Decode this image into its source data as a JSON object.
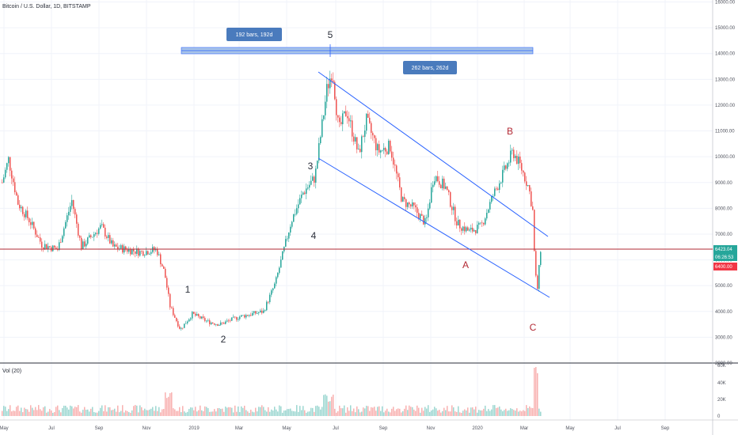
{
  "symbol": "Bitcoin / U.S. Dollar, 1D, BITSTAMP",
  "price_axis": {
    "ticks": [
      "16000.00",
      "15000.00",
      "14000.00",
      "13000.00",
      "12000.00",
      "11000.00",
      "10000.00",
      "9000.00",
      "8000.00",
      "7000.00",
      "6000.00",
      "5000.00",
      "4000.00",
      "3000.00",
      "2000.00"
    ],
    "ylim": [
      2000,
      16000
    ]
  },
  "volume": {
    "label": "Vol (20)",
    "ticks": [
      "60K",
      "40K",
      "20K",
      "0"
    ]
  },
  "time_axis": [
    "May",
    "Jul",
    "Sep",
    "Nov",
    "2019",
    "Mar",
    "May",
    "Jul",
    "Sep",
    "Nov",
    "2020",
    "Mar",
    "May",
    "Jul",
    "Sep"
  ],
  "price_tags": {
    "last": "6423.04",
    "countdown": "06:26:53",
    "level": "6400.00"
  },
  "colors": {
    "up": "#26a69a",
    "down": "#ef5350",
    "channel": "#2962ff",
    "level_line": "#b22833",
    "wave_label": "#b22833",
    "badge": "#4a7bbd"
  },
  "annotations": {
    "range1": "192 bars, 192d",
    "range2": "262 bars, 262d",
    "waves": [
      "1",
      "2",
      "3",
      "4",
      "5"
    ],
    "corrective": [
      "A",
      "B",
      "C"
    ]
  },
  "chart_data": {
    "type": "candlestick",
    "title": "Bitcoin / U.S. Dollar, 1D, BITSTAMP",
    "series": [
      {
        "name": "Bitcoin / U.S. Dollar",
        "x": [
          "2018-05",
          "2018-06",
          "2018-07",
          "2018-08",
          "2018-09",
          "2018-10",
          "2018-11",
          "2018-12",
          "2019-01",
          "2019-02",
          "2019-03",
          "2019-04",
          "2019-05",
          "2019-06",
          "2019-07",
          "2019-08",
          "2019-09",
          "2019-10",
          "2019-11",
          "2019-12",
          "2020-01",
          "2020-02",
          "2020-03"
        ],
        "close": [
          8900,
          6800,
          7200,
          7000,
          6600,
          6300,
          4100,
          3700,
          3450,
          3800,
          4000,
          5200,
          8500,
          11000,
          10000,
          9600,
          8300,
          9200,
          7500,
          7200,
          9300,
          8600,
          6423
        ]
      }
    ],
    "ylim": [
      2000,
      16000
    ],
    "annotations": [
      "1",
      "2",
      "3",
      "4",
      "5",
      "A",
      "B",
      "C"
    ]
  }
}
